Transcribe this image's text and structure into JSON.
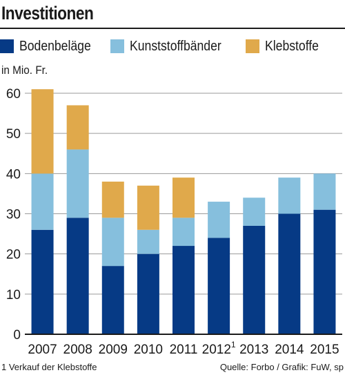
{
  "title": "Investitionen",
  "unit_label": "in Mio. Fr.",
  "footnote": "1 Verkauf der Klebstoffe",
  "source": "Quelle: Forbo / Grafik: FuW, sp",
  "colors": {
    "bodenbelaege": "#063a85",
    "kunststoffbaender": "#86bfdd",
    "klebstoffe": "#e0a94b",
    "axis": "#1a1a1a",
    "grid": "#9a9a9a"
  },
  "chart_data": {
    "type": "bar",
    "stacked": true,
    "title": "Investitionen",
    "ylabel": "in Mio. Fr.",
    "ylim": [
      0,
      60
    ],
    "yticks": [
      0,
      10,
      20,
      30,
      40,
      50,
      60
    ],
    "grid": true,
    "legend_position": "top",
    "categories": [
      "2007",
      "2008",
      "2009",
      "2010",
      "2011",
      "2012",
      "2013",
      "2014",
      "2015"
    ],
    "category_superscripts": [
      "",
      "",
      "",
      "",
      "",
      "1",
      "",
      "",
      ""
    ],
    "series": [
      {
        "name": "Bodenbeläge",
        "color": "#063a85",
        "values": [
          26,
          29,
          17,
          20,
          22,
          24,
          27,
          30,
          31
        ]
      },
      {
        "name": "Kunststoffbänder",
        "color": "#86bfdd",
        "values": [
          14,
          17,
          12,
          6,
          7,
          9,
          7,
          9,
          9
        ]
      },
      {
        "name": "Klebstoffe",
        "color": "#e0a94b",
        "values": [
          21,
          11,
          9,
          11,
          10,
          0,
          0,
          0,
          0
        ]
      }
    ]
  }
}
